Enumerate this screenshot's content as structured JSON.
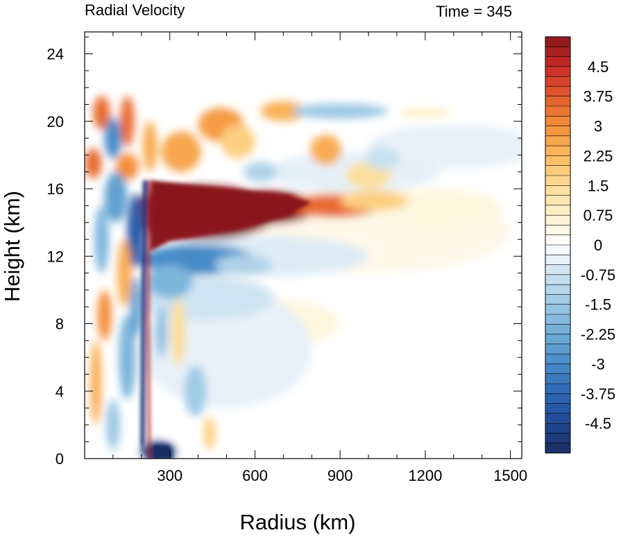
{
  "chart_data": {
    "type": "heatmap",
    "title": "Radial Velocity",
    "subtitle": "Time = 345",
    "xlabel": "Radius (km)",
    "ylabel": "Height (km)",
    "xlim": [
      0,
      1540
    ],
    "ylim": [
      0,
      25.3
    ],
    "x_ticks": [
      300,
      600,
      900,
      1200,
      1500
    ],
    "y_ticks": [
      0,
      4,
      8,
      12,
      16,
      20,
      24
    ],
    "colorbar": {
      "min": -5.25,
      "max": 5.25,
      "step": 0.25,
      "tick_values": [
        4.5,
        3.75,
        3,
        2.25,
        1.5,
        0.75,
        0,
        -0.75,
        -1.5,
        -2.25,
        -3,
        -3.75,
        -4.5
      ],
      "tick_labels": [
        "4.5",
        "3.75",
        "3",
        "2.25",
        "1.5",
        "0.75",
        "0",
        "-0.75",
        "-1.5",
        "-2.25",
        "-3",
        "-3.75",
        "-4.5"
      ],
      "colormap": "blue-white-red diverging"
    },
    "features": [
      {
        "name": "upper-level outflow jet",
        "x_range": [
          230,
          800
        ],
        "y_range": [
          12.8,
          16.5
        ],
        "value": 5.5
      },
      {
        "name": "outflow tail",
        "x_range": [
          700,
          1080
        ],
        "y_range": [
          14.2,
          15.8
        ],
        "value": 2.5
      },
      {
        "name": "mid-level inflow",
        "x_range": [
          230,
          560
        ],
        "y_range": [
          10.8,
          12.6
        ],
        "value": -3.0
      },
      {
        "name": "eyewall updraft edge",
        "x_range": [
          200,
          240
        ],
        "y_range": [
          0,
          16.5
        ],
        "value": -4.5
      },
      {
        "name": "boundary-layer inflow",
        "x_range": [
          230,
          310
        ],
        "y_range": [
          0,
          0.8
        ],
        "value": -5.0
      },
      {
        "name": "upper outflow bands",
        "x_range": [
          30,
          1060
        ],
        "y_range": [
          16.5,
          21.5
        ],
        "value": 2.5
      }
    ]
  }
}
